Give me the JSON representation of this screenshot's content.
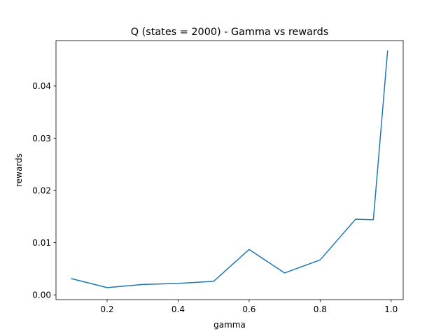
{
  "chart_data": {
    "type": "line",
    "title": "Q (states = 2000) - Gamma vs rewards",
    "xlabel": "gamma",
    "ylabel": "rewards",
    "xlim": [
      0.056,
      1.034
    ],
    "ylim": [
      -0.0009,
      0.0487
    ],
    "grid": false,
    "x_ticks": [
      0.2,
      0.4,
      0.6,
      0.8,
      1.0
    ],
    "x_tick_labels": [
      "0.2",
      "0.4",
      "0.6",
      "0.8",
      "1.0"
    ],
    "y_ticks": [
      0.0,
      0.01,
      0.02,
      0.03,
      0.04
    ],
    "y_tick_labels": [
      "0.00",
      "0.01",
      "0.02",
      "0.03",
      "0.04"
    ],
    "series": [
      {
        "color": "#1f77b4",
        "x": [
          0.1,
          0.2,
          0.3,
          0.4,
          0.5,
          0.6,
          0.7,
          0.8,
          0.9,
          0.95,
          0.99
        ],
        "y": [
          0.0031,
          0.0014,
          0.002,
          0.0022,
          0.0026,
          0.0087,
          0.0042,
          0.0067,
          0.0145,
          0.0144,
          0.0467
        ]
      }
    ]
  }
}
